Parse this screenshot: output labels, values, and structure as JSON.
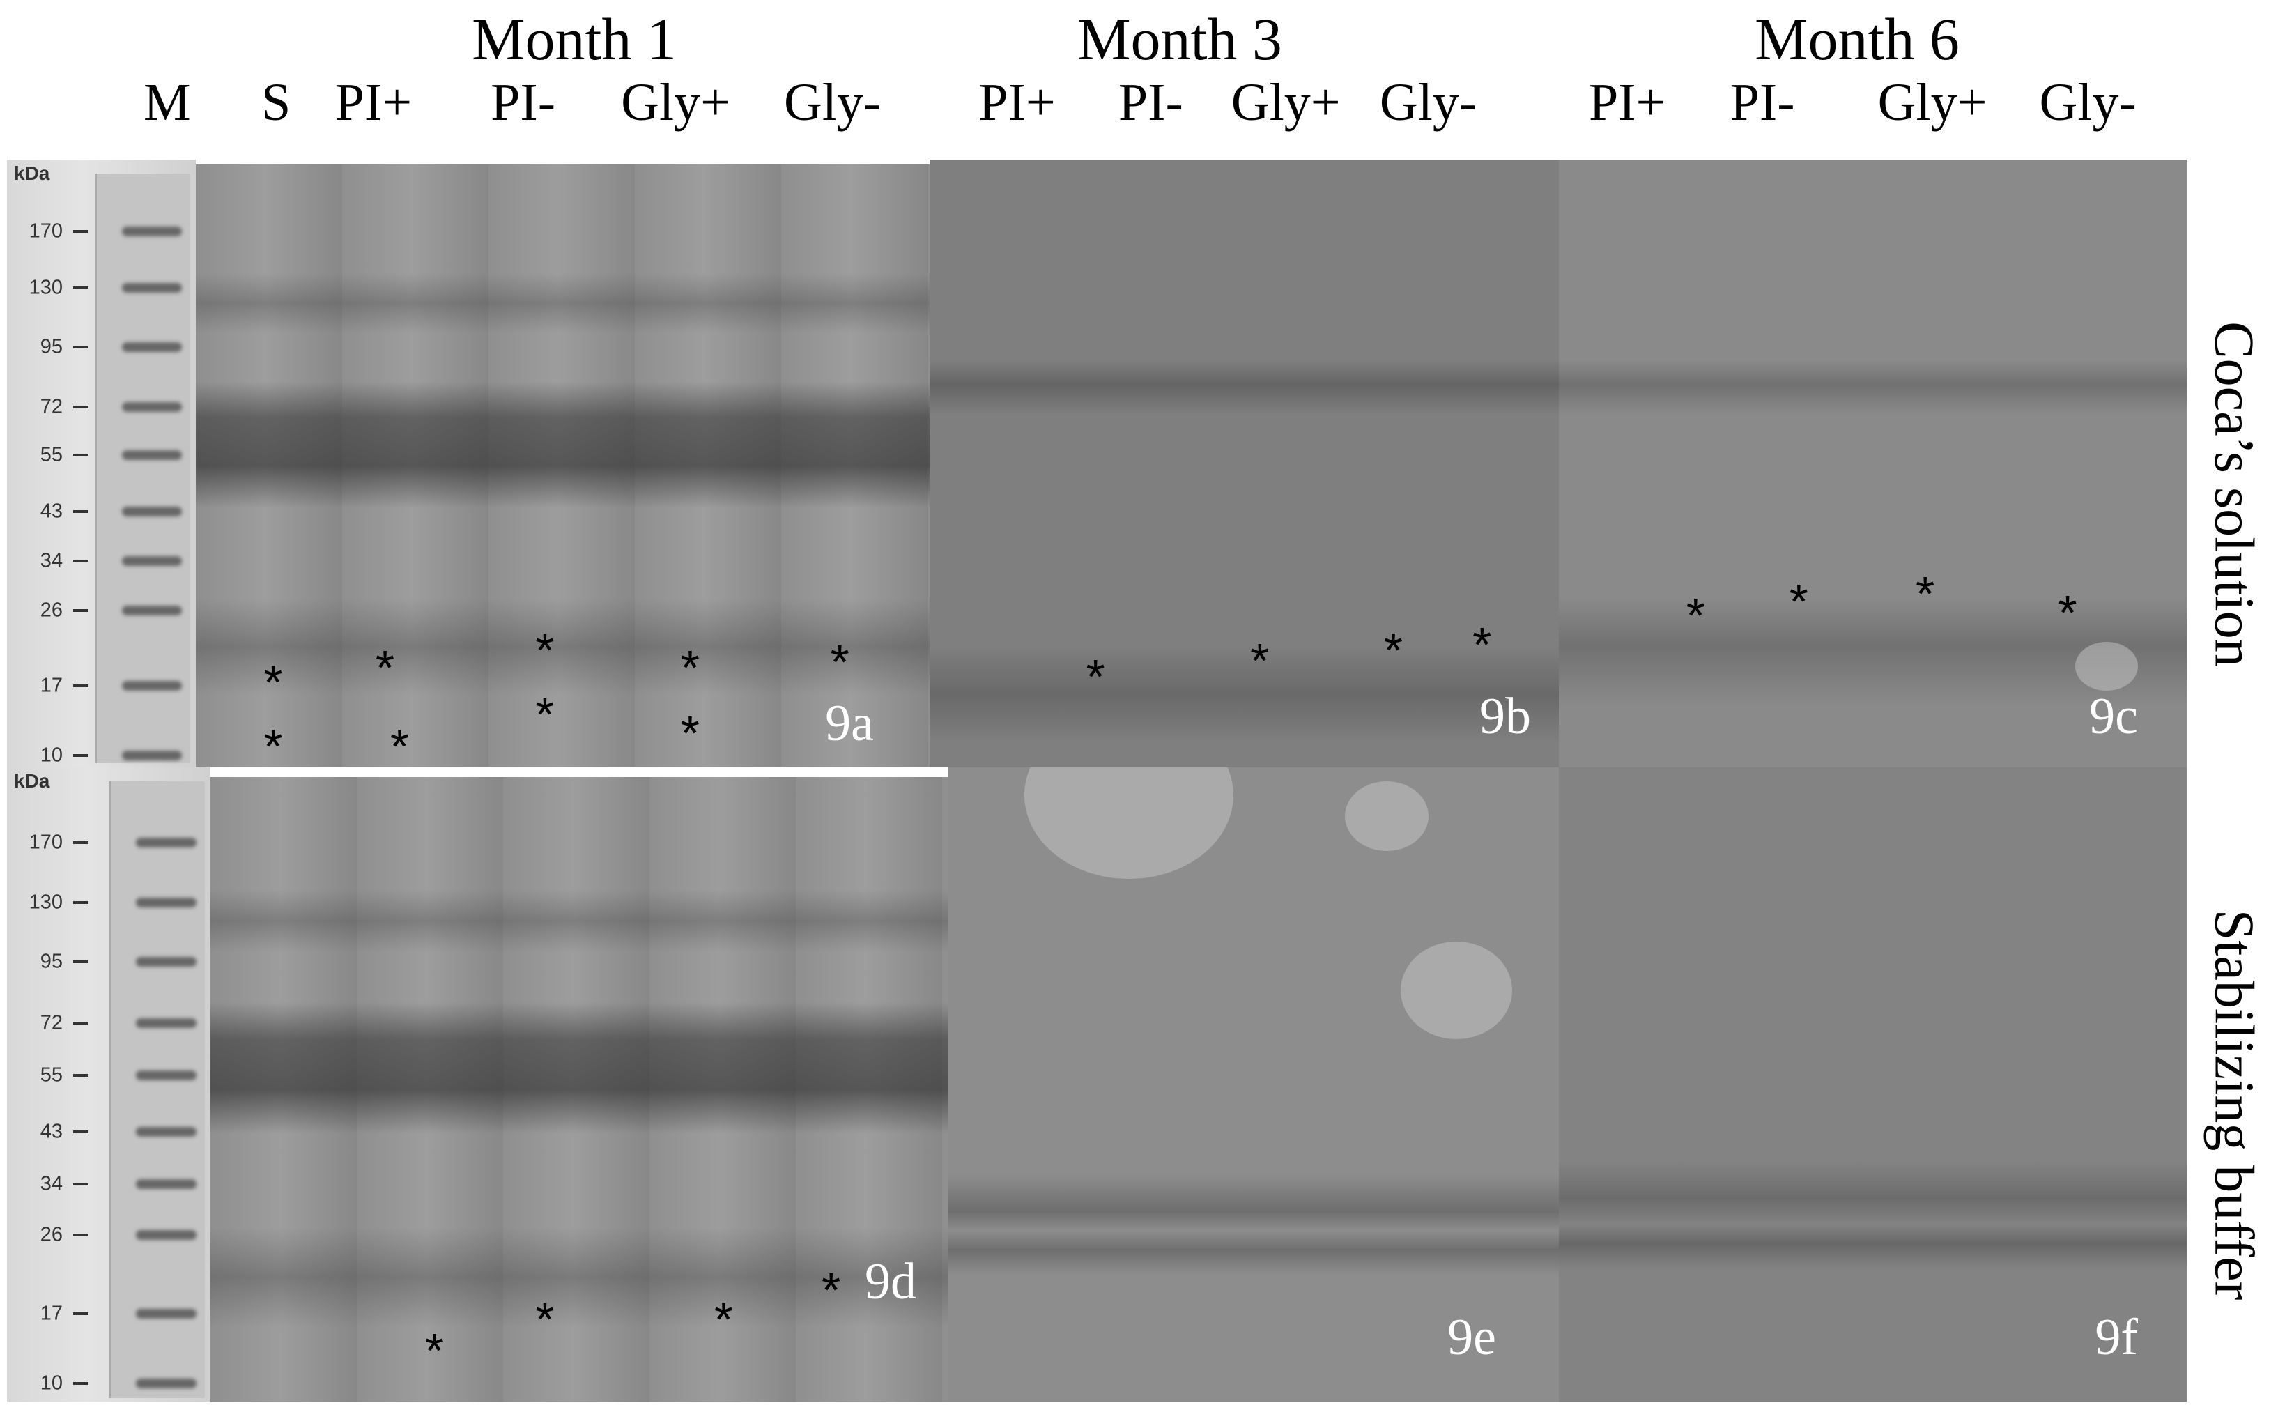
{
  "headers": {
    "months": [
      "Month 1",
      "Month 3",
      "Month 6"
    ],
    "lanes": [
      "M",
      "S",
      "PI+",
      "PI-",
      "Gly+",
      "Gly-",
      "PI+",
      "PI-",
      "Gly+",
      "Gly-",
      "PI+",
      "PI-",
      "Gly+",
      "Gly-"
    ]
  },
  "row_labels": [
    "Coca’s solution",
    "Stabilizing buffer"
  ],
  "marker": {
    "unit": "kDa",
    "sizes": [
      "170",
      "130",
      "95",
      "72",
      "55",
      "43",
      "34",
      "26",
      "17",
      "10"
    ]
  },
  "panels": [
    "9a",
    "9b",
    "9c",
    "9d",
    "9e",
    "9f"
  ],
  "asterisk": "*"
}
